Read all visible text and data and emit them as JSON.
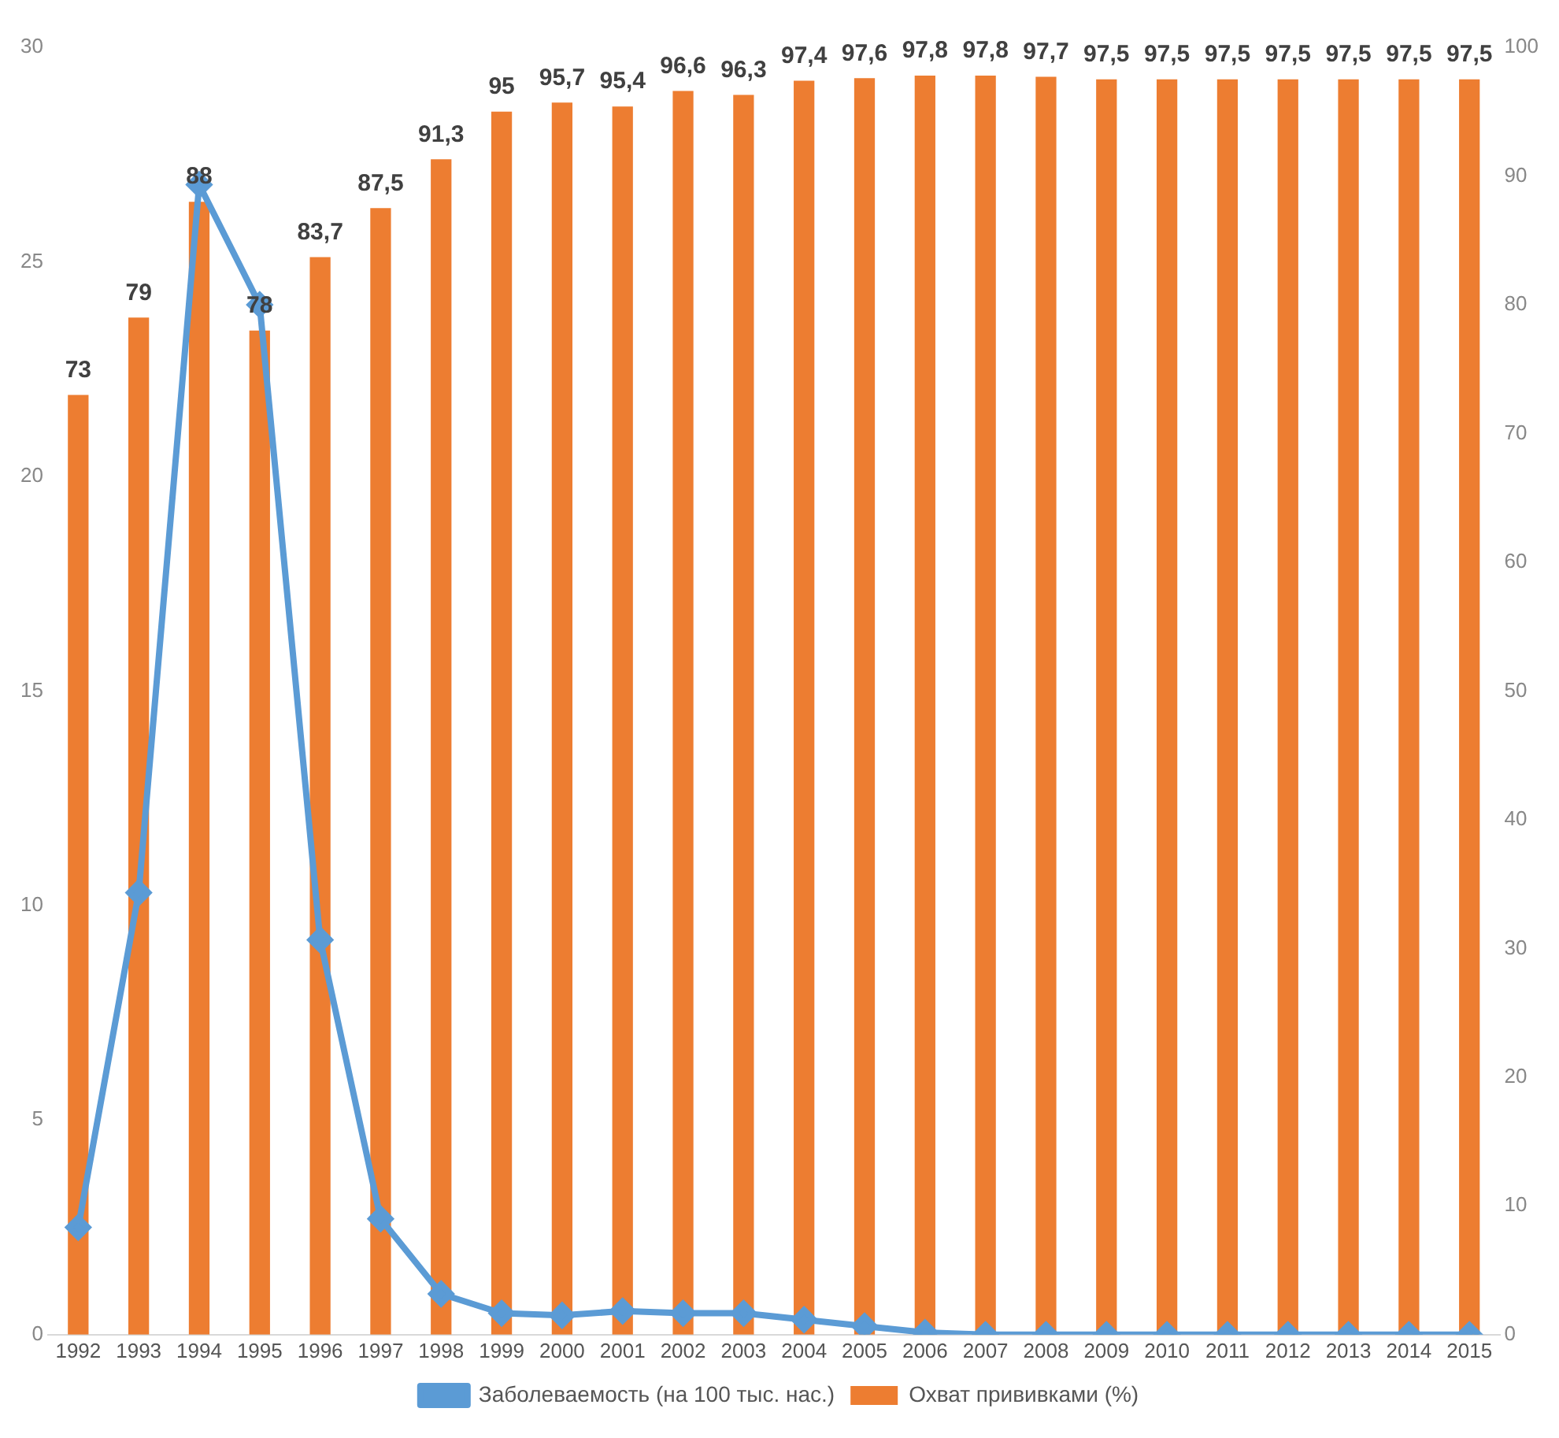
{
  "chart_data": {
    "type": "bar",
    "categories": [
      "1992",
      "1993",
      "1994",
      "1995",
      "1996",
      "1997",
      "1998",
      "1999",
      "2000",
      "2001",
      "2002",
      "2003",
      "2004",
      "2005",
      "2006",
      "2007",
      "2008",
      "2009",
      "2010",
      "2011",
      "2012",
      "2013",
      "2014",
      "2015"
    ],
    "series": [
      {
        "name": "Охват прививками (%)",
        "color": "#ed7d31",
        "axis": "y2",
        "values": [
          73,
          79,
          88,
          78,
          83.7,
          87.5,
          91.3,
          95,
          95.7,
          95.4,
          96.6,
          96.3,
          97.4,
          97.6,
          97.8,
          97.8,
          97.7,
          97.5,
          97.5,
          97.5,
          97.5,
          97.5,
          97.5,
          97.5
        ],
        "value_labels": [
          "73",
          "79",
          "88",
          "78",
          "83,7",
          "87,5",
          "91,3",
          "95",
          "95,7",
          "95,4",
          "96,6",
          "96,3",
          "97,4",
          "97,6",
          "97,8",
          "97,8",
          "97,7",
          "97,5",
          "97,5",
          "97,5",
          "97,5",
          "97,5",
          "97,5",
          "97,5"
        ]
      },
      {
        "name": "Заболеваемость (на 100 тыс. нас.)",
        "type": "line",
        "color": "#5b9bd5",
        "axis": "y",
        "values": [
          2.5,
          10.3,
          26.8,
          24.0,
          9.2,
          2.7,
          0.95,
          0.5,
          0.45,
          0.55,
          0.5,
          0.5,
          0.35,
          0.2,
          0.05,
          0,
          0,
          0,
          0,
          0,
          0,
          0,
          0,
          0
        ]
      }
    ],
    "ylim": [
      0,
      30
    ],
    "yticks": [
      0,
      5,
      10,
      15,
      20,
      25,
      30
    ],
    "y2lim": [
      0,
      100
    ],
    "y2ticks": [
      0,
      10,
      20,
      30,
      40,
      50,
      60,
      70,
      80,
      90,
      100
    ],
    "grid": false,
    "legend": "bottom",
    "marker": "diamond",
    "line_style": "solid"
  }
}
